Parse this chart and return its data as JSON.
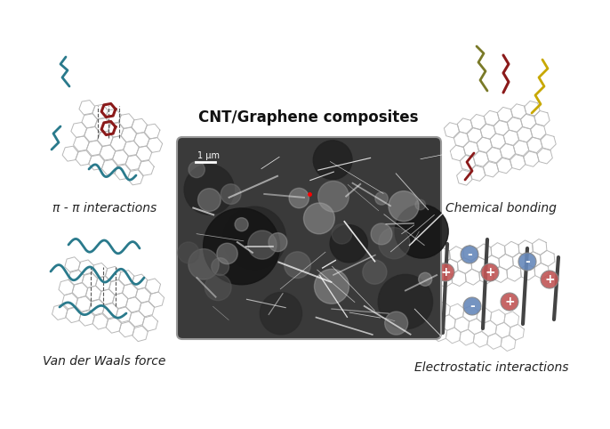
{
  "title": "CNT/Graphene composites",
  "scale_bar_label": "1 μm",
  "labels": {
    "top_left": "π - π interactions",
    "top_right": "Chemical bonding",
    "bottom_left": "Van der Waals force",
    "bottom_right": "Electrostatic interactions"
  },
  "label_fontsize": 10,
  "title_fontsize": 12,
  "bg_color": "#ffffff",
  "fig_width": 6.86,
  "fig_height": 4.82,
  "dpi": 100,
  "colors": {
    "teal": "#2a7a8c",
    "dark_red": "#8b1a1a",
    "crimson": "#9a2020",
    "olive": "#7a7a28",
    "yellow_gold": "#c8a800",
    "red_ion": "#c05555",
    "blue_ion": "#6688bb",
    "graphene": "#aaaaaa",
    "graphene_lw": 0.7,
    "rod_color": "#444444"
  }
}
